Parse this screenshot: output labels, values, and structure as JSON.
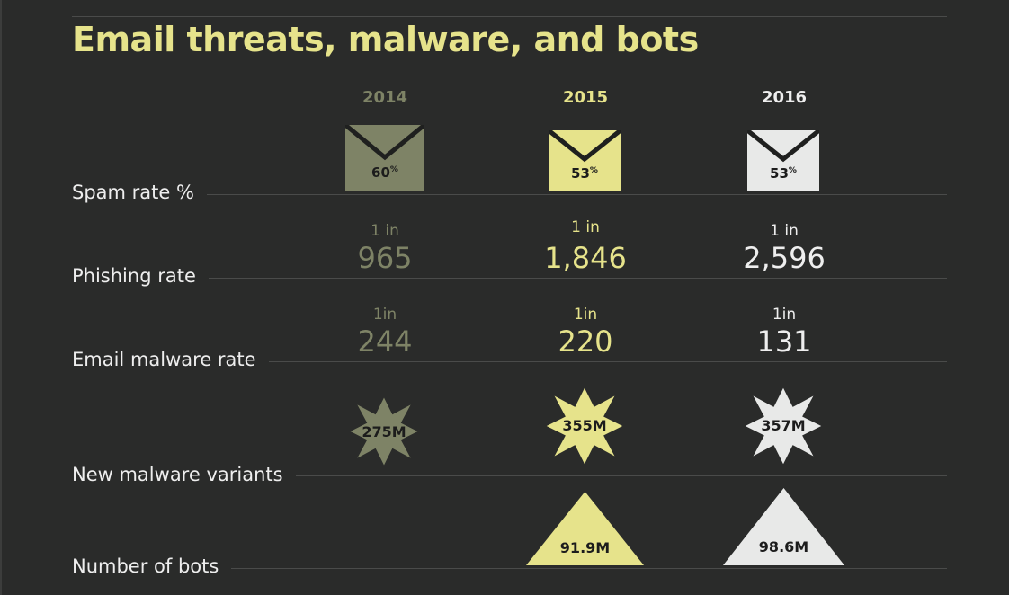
{
  "title": "Email threats, malware, and bots",
  "years": [
    "2014",
    "2015",
    "2016"
  ],
  "colors": {
    "y2014": "#7e8366",
    "y2015": "#e6e38b",
    "y2016": "#e8e9e8",
    "background": "#2a2b2a"
  },
  "rows": {
    "spam": {
      "label": "Spam rate %",
      "values": [
        "60",
        "53",
        "53"
      ],
      "unit": "%"
    },
    "phishing": {
      "label": "Phishing rate",
      "prefix": [
        "1 in",
        "1 in",
        "1 in"
      ],
      "values": [
        "965",
        "1,846",
        "2,596"
      ]
    },
    "email_malware": {
      "label": "Email malware rate",
      "prefix": [
        "1in",
        "1in",
        "1in"
      ],
      "values": [
        "244",
        "220",
        "131"
      ]
    },
    "variants": {
      "label": "New malware variants",
      "values": [
        "275M",
        "355M",
        "357M"
      ]
    },
    "bots": {
      "label": "Number of bots",
      "values": [
        "",
        "91.9M",
        "98.6M"
      ]
    }
  },
  "icons": {
    "spam": "envelope-icon",
    "variants": "starburst-icon",
    "bots": "triangle-icon"
  }
}
